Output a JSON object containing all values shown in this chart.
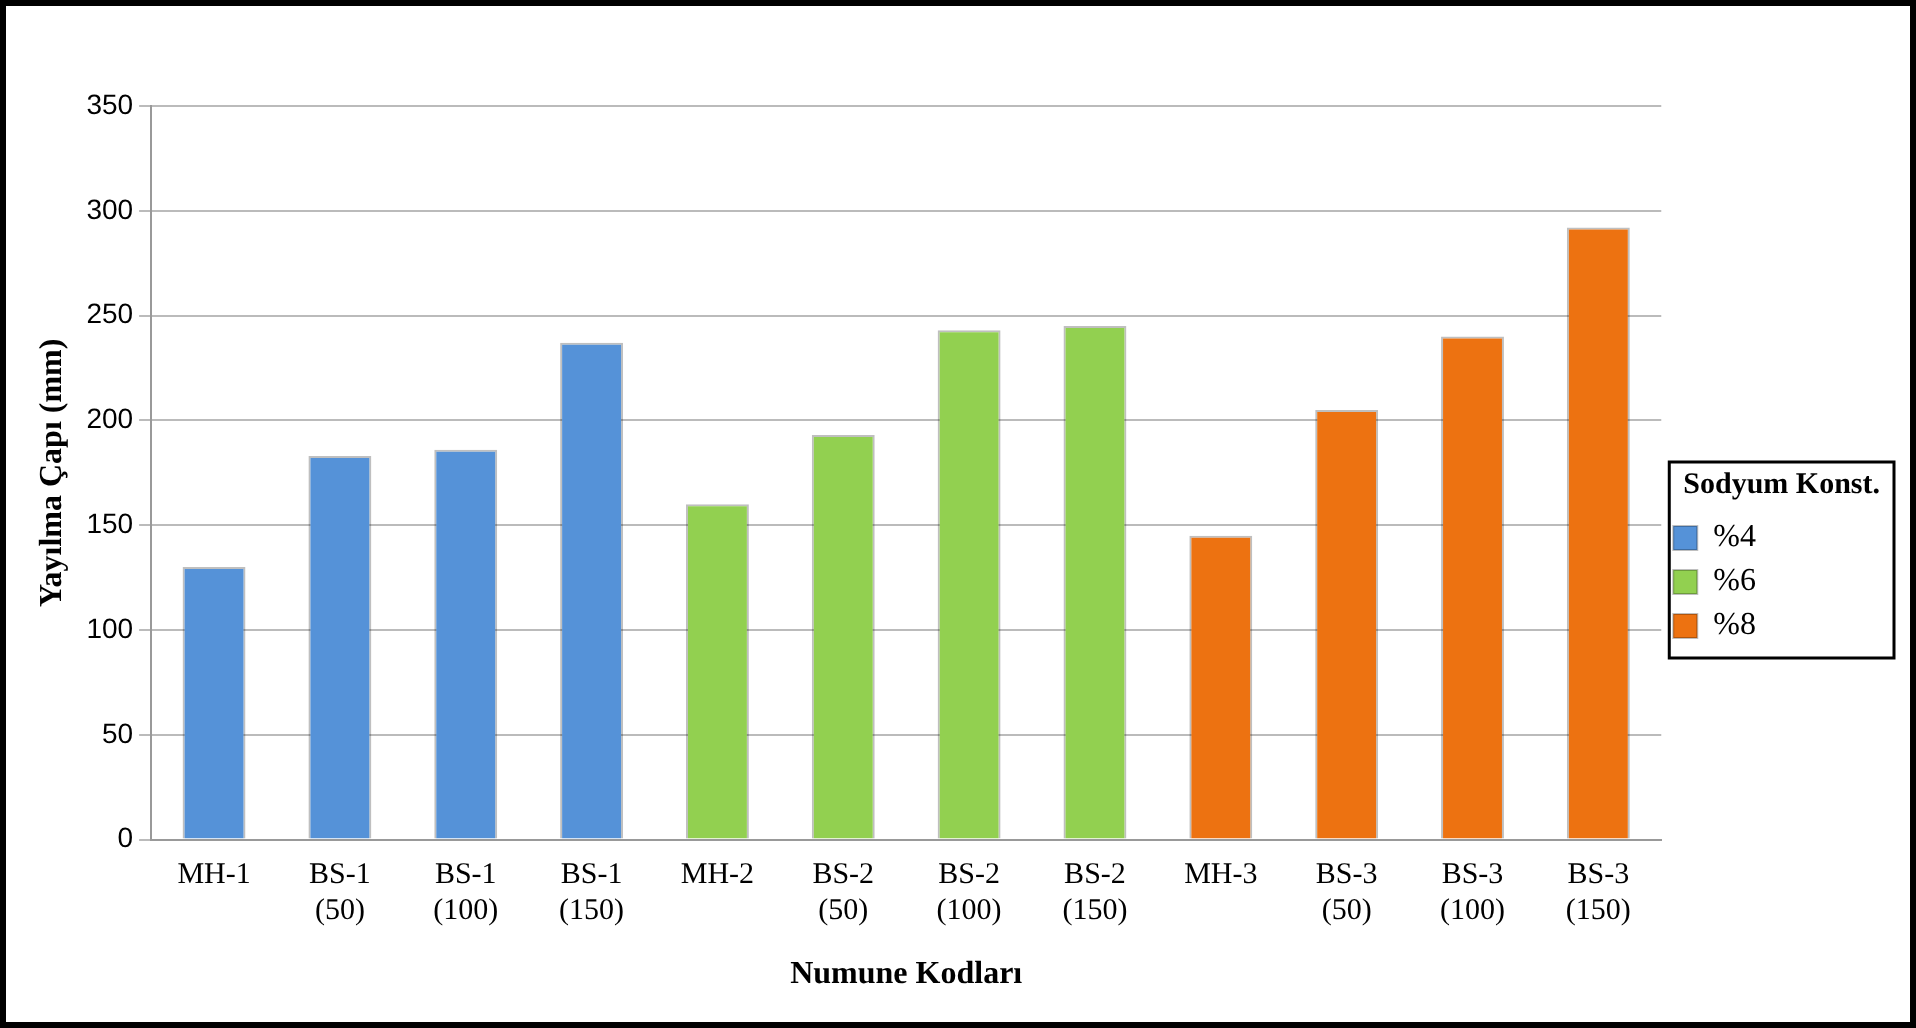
{
  "chart_data": {
    "type": "bar",
    "xlabel": "Numune Kodları",
    "ylabel": "Yayılma Çapı (mm)",
    "legend_title": "Sodyum Konst.",
    "categories": [
      "MH-1",
      "BS-1 (50)",
      "BS-1 (100)",
      "BS-1 (150)",
      "MH-2",
      "BS-2 (50)",
      "BS-2 (100)",
      "BS-2 (150)",
      "MH-3",
      "BS-3 (50)",
      "BS-3 (100)",
      "BS-3 (150)"
    ],
    "series": [
      {
        "name": "%4",
        "color": "#5592d8",
        "values": [
          130,
          183,
          186,
          237,
          null,
          null,
          null,
          null,
          null,
          null,
          null,
          null
        ]
      },
      {
        "name": "%6",
        "color": "#92d050",
        "values": [
          null,
          null,
          null,
          null,
          160,
          193,
          243,
          245,
          null,
          null,
          null,
          null
        ]
      },
      {
        "name": "%8",
        "color": "#ed7211",
        "values": [
          null,
          null,
          null,
          null,
          null,
          null,
          null,
          null,
          145,
          205,
          240,
          292
        ]
      }
    ],
    "ylim": [
      0,
      350
    ],
    "yticks": [
      0,
      50,
      100,
      150,
      200,
      250,
      300,
      350
    ],
    "grid": "y",
    "legend": "right"
  }
}
